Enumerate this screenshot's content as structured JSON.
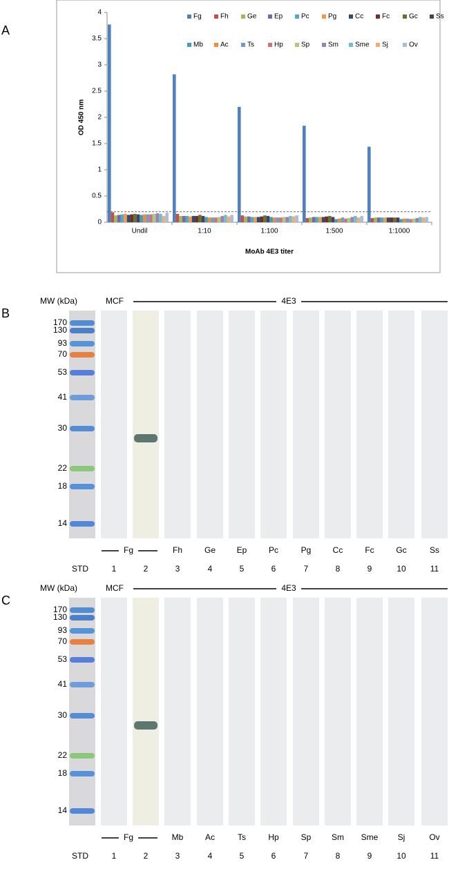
{
  "chart_data": {
    "type": "bar",
    "panel_label": "A",
    "y_label": "OD 450 nm",
    "x_label": "MoAb 4E3 titer",
    "categories": [
      "Undil",
      "1:10",
      "1:100",
      "1:500",
      "1:1000"
    ],
    "ylim": [
      0,
      4
    ],
    "yticks": [
      0,
      0.5,
      1,
      1.5,
      2,
      2.5,
      3,
      3.5,
      4
    ],
    "threshold": 0.2,
    "series": [
      {
        "name": "Fg",
        "color": "#4f81bd",
        "values": [
          3.77,
          2.82,
          2.2,
          1.84,
          1.44
        ]
      },
      {
        "name": "Fh",
        "color": "#c0504d",
        "values": [
          0.19,
          0.16,
          0.13,
          0.08,
          0.08
        ]
      },
      {
        "name": "Ge",
        "color": "#9bbb59",
        "values": [
          0.13,
          0.12,
          0.11,
          0.09,
          0.09
        ]
      },
      {
        "name": "Ep",
        "color": "#8064a2",
        "values": [
          0.14,
          0.12,
          0.11,
          0.1,
          0.09
        ]
      },
      {
        "name": "Pc",
        "color": "#4bacc6",
        "values": [
          0.15,
          0.12,
          0.1,
          0.1,
          0.09
        ]
      },
      {
        "name": "Pg",
        "color": "#f79646",
        "values": [
          0.16,
          0.11,
          0.1,
          0.1,
          0.09
        ]
      },
      {
        "name": "Cc",
        "color": "#2c4d75",
        "values": [
          0.14,
          0.12,
          0.1,
          0.1,
          0.09
        ]
      },
      {
        "name": "Fc",
        "color": "#772c2a",
        "values": [
          0.15,
          0.12,
          0.11,
          0.11,
          0.09
        ]
      },
      {
        "name": "Gc",
        "color": "#5f7530",
        "values": [
          0.16,
          0.14,
          0.13,
          0.12,
          0.09
        ]
      },
      {
        "name": "Ss",
        "color": "#4d3b62",
        "values": [
          0.15,
          0.12,
          0.12,
          0.1,
          0.09
        ]
      },
      {
        "name": "Mb",
        "color": "#3f9fb8",
        "values": [
          0.14,
          0.1,
          0.1,
          0.06,
          0.06
        ]
      },
      {
        "name": "Ac",
        "color": "#f08a3c",
        "values": [
          0.15,
          0.09,
          0.09,
          0.07,
          0.07
        ]
      },
      {
        "name": "Ts",
        "color": "#729aca",
        "values": [
          0.15,
          0.09,
          0.09,
          0.09,
          0.07
        ]
      },
      {
        "name": "Hp",
        "color": "#cd7371",
        "values": [
          0.15,
          0.09,
          0.09,
          0.07,
          0.06
        ]
      },
      {
        "name": "Sp",
        "color": "#afc97a",
        "values": [
          0.16,
          0.1,
          0.1,
          0.08,
          0.07
        ]
      },
      {
        "name": "Sm",
        "color": "#9983b5",
        "values": [
          0.17,
          0.12,
          0.1,
          0.1,
          0.08
        ]
      },
      {
        "name": "Sme",
        "color": "#6fbdd1",
        "values": [
          0.16,
          0.14,
          0.12,
          0.12,
          0.1
        ]
      },
      {
        "name": "Sj",
        "color": "#f9ab6b",
        "values": [
          0.12,
          0.11,
          0.11,
          0.09,
          0.09
        ]
      },
      {
        "name": "Ov",
        "color": "#a6bfe1",
        "values": [
          0.18,
          0.14,
          0.13,
          0.12,
          0.1
        ]
      }
    ]
  },
  "blots": [
    {
      "label": "B",
      "mw_header": "MW (kDa)",
      "control": "MCF",
      "antibody": "4E3",
      "std": "STD",
      "markers": [
        "170",
        "130",
        "93",
        "70",
        "53",
        "41",
        "30",
        "22",
        "18",
        "14"
      ],
      "antigens": [
        "Fg",
        "Fh",
        "Ge",
        "Ep",
        "Pc",
        "Pg",
        "Cc",
        "Fc",
        "Gc",
        "Ss"
      ],
      "lanes": [
        "1",
        "2",
        "3",
        "4",
        "5",
        "6",
        "7",
        "8",
        "9",
        "10",
        "11"
      ]
    },
    {
      "label": "C",
      "mw_header": "MW (kDa)",
      "control": "MCF",
      "antibody": "4E3",
      "std": "STD",
      "markers": [
        "170",
        "130",
        "93",
        "70",
        "53",
        "41",
        "30",
        "22",
        "18",
        "14"
      ],
      "antigens": [
        "Fg",
        "Mb",
        "Ac",
        "Ts",
        "Hp",
        "Sp",
        "Sm",
        "Sme",
        "Sj",
        "Ov"
      ],
      "lanes": [
        "1",
        "2",
        "3",
        "4",
        "5",
        "6",
        "7",
        "8",
        "9",
        "10",
        "11"
      ]
    }
  ]
}
